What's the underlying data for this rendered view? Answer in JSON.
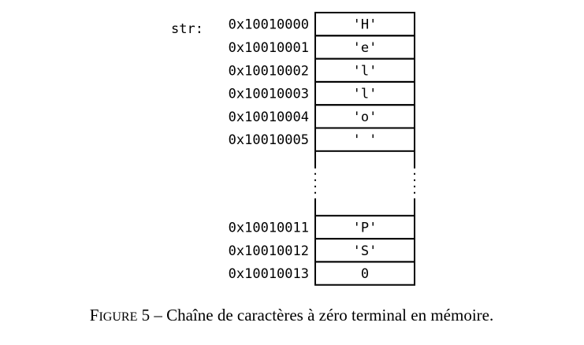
{
  "pointer_label": "str:",
  "cells": [
    {
      "address": "0x10010000",
      "value": "'H'"
    },
    {
      "address": "0x10010001",
      "value": "'e'"
    },
    {
      "address": "0x10010002",
      "value": "'l'"
    },
    {
      "address": "0x10010003",
      "value": "'l'"
    },
    {
      "address": "0x10010004",
      "value": "'o'"
    },
    {
      "address": "0x10010005",
      "value": "' '"
    },
    {
      "address": "0x10010011",
      "value": "'P'"
    },
    {
      "address": "0x10010012",
      "value": "'S'"
    },
    {
      "address": "0x10010013",
      "value": "0"
    }
  ],
  "caption": {
    "figure_word": "FIGURE",
    "number": "5",
    "text": "Chaîne de caractères à zéro terminal en mémoire."
  }
}
